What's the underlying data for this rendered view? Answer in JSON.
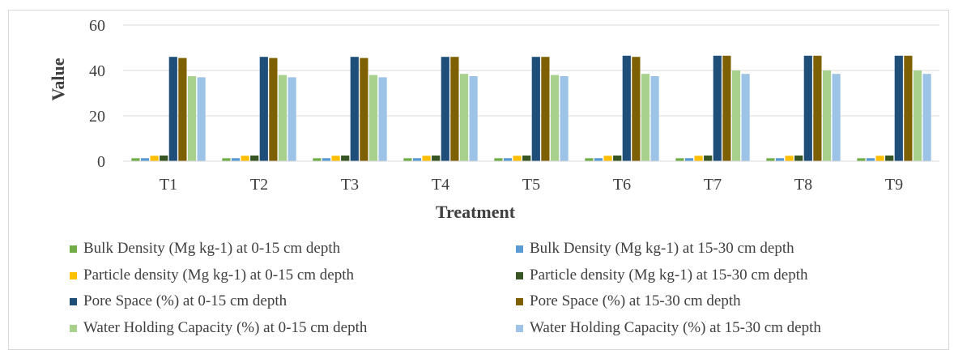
{
  "chart_data": {
    "type": "bar",
    "title": "",
    "xlabel": "Treatment",
    "ylabel": "Value",
    "ylim": [
      0,
      60
    ],
    "yticks": [
      0,
      20,
      40,
      60
    ],
    "grid": true,
    "legend_position": "bottom",
    "categories": [
      "T1",
      "T2",
      "T3",
      "T4",
      "T5",
      "T6",
      "T7",
      "T8",
      "T9"
    ],
    "series": [
      {
        "name": "Bulk Density  (Mg kg-1) at 0-15 cm depth",
        "color": "#70ad47",
        "values": [
          1.3,
          1.3,
          1.3,
          1.3,
          1.3,
          1.3,
          1.3,
          1.3,
          1.3
        ]
      },
      {
        "name": "Bulk Density (Mg kg-1) at 15-30 cm depth",
        "color": "#5b9bd5",
        "values": [
          1.35,
          1.35,
          1.35,
          1.35,
          1.35,
          1.35,
          1.35,
          1.35,
          1.35
        ]
      },
      {
        "name": "Particle density  (Mg kg-1) at 0-15 cm depth",
        "color": "#ffc000",
        "values": [
          2.4,
          2.4,
          2.4,
          2.4,
          2.4,
          2.4,
          2.4,
          2.4,
          2.4
        ]
      },
      {
        "name": "Particle density  (Mg kg-1) at 15-30 cm depth",
        "color": "#375623",
        "values": [
          2.5,
          2.5,
          2.5,
          2.5,
          2.5,
          2.5,
          2.5,
          2.5,
          2.5
        ]
      },
      {
        "name": "Pore Space (%) at 0-15 cm depth",
        "color": "#1f4e79",
        "values": [
          46,
          46,
          46,
          46,
          46,
          46.5,
          46.5,
          46.5,
          46.5
        ]
      },
      {
        "name": "Pore Space  (%) at 15-30 cm depth",
        "color": "#7f6000",
        "values": [
          45.5,
          45.5,
          45.5,
          46,
          46,
          46,
          46.5,
          46.5,
          46.5
        ]
      },
      {
        "name": "Water Holding Capacity  (%) at 0-15 cm depth",
        "color": "#a9d18e",
        "values": [
          37.5,
          38,
          38,
          38.5,
          38,
          38.5,
          40,
          40,
          40
        ]
      },
      {
        "name": "Water Holding Capacity  (%) at 15-30 cm depth",
        "color": "#9dc3e6",
        "values": [
          37,
          37,
          37,
          37.5,
          37.5,
          37.5,
          38.5,
          38.5,
          38.5
        ]
      }
    ]
  }
}
